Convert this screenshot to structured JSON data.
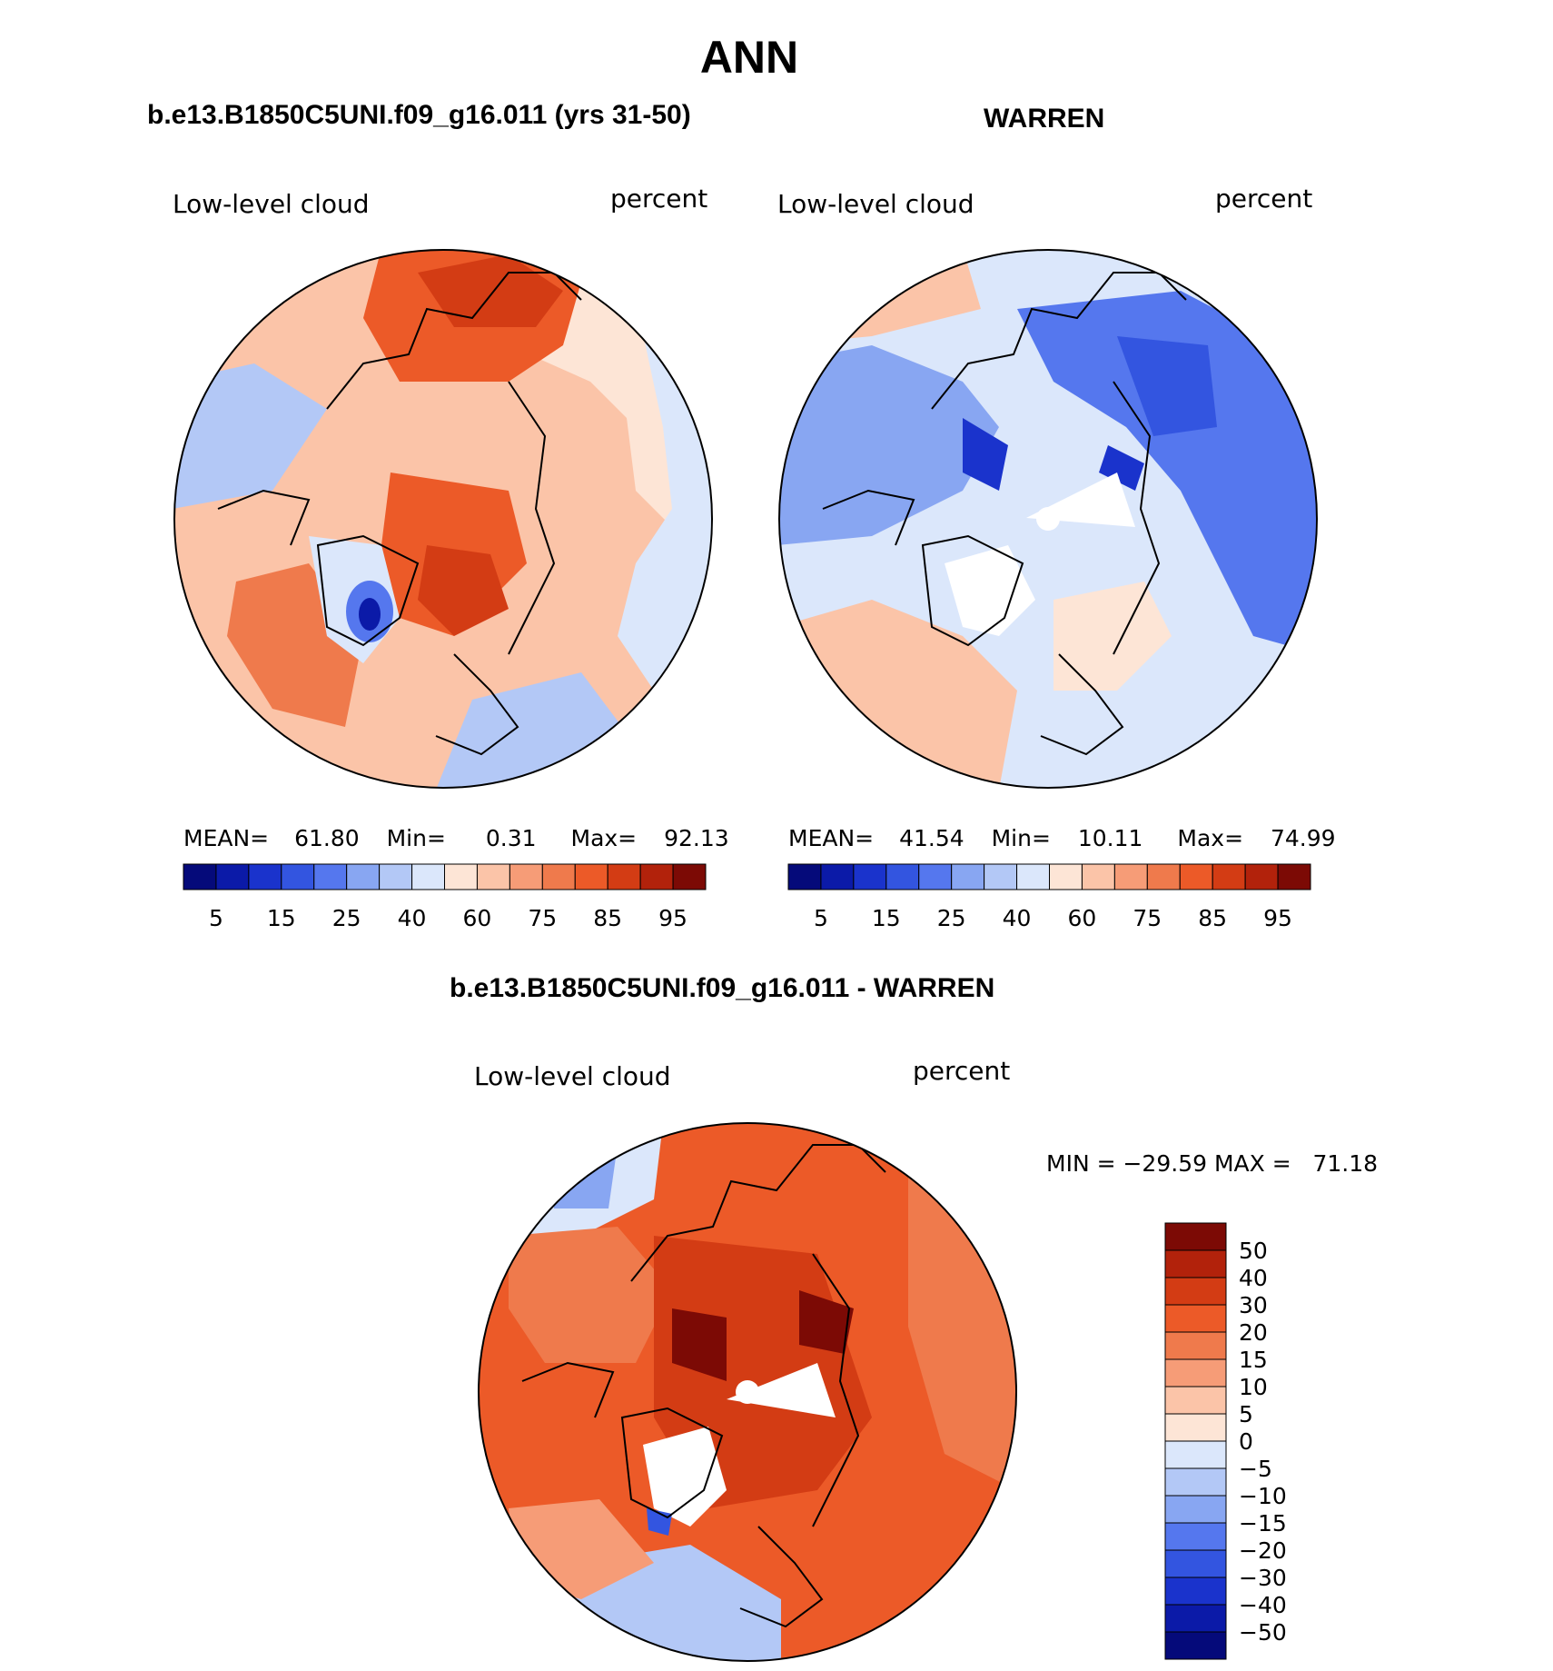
{
  "page": {
    "main_title": "ANN",
    "left_header": "b.e13.B1850C5UNI.f09_g16.011 (yrs 31-50)",
    "right_header": "WARREN",
    "diff_header": "b.e13.B1850C5UNI.f09_g16.011 - WARREN"
  },
  "chart_data": [
    {
      "type": "heatmap",
      "projection": "north-polar-stereographic",
      "title": "b.e13.B1850C5UNI.f09_g16.011 (yrs 31-50)",
      "variable": "Low-level cloud",
      "units": "percent",
      "stats_labels": {
        "mean": "MEAN=",
        "min": "Min=",
        "max": "Max="
      },
      "stats": {
        "mean": "61.80",
        "min": "0.31",
        "max": "92.13"
      },
      "colorbar_ticks": [
        "5",
        "15",
        "25",
        "40",
        "60",
        "75",
        "85",
        "95"
      ],
      "colorbar_colors": [
        "#050a7a",
        "#0b1aa8",
        "#1a33cc",
        "#3355e0",
        "#5577ee",
        "#88a6f2",
        "#b3c8f6",
        "#dbe7fb",
        "#fde5d6",
        "#fbc4a8",
        "#f69c77",
        "#ef7a4c",
        "#ec5a28",
        "#d33c14",
        "#b2220b",
        "#7c0a05"
      ]
    },
    {
      "type": "heatmap",
      "projection": "north-polar-stereographic",
      "title": "WARREN",
      "variable": "Low-level cloud",
      "units": "percent",
      "stats_labels": {
        "mean": "MEAN=",
        "min": "Min=",
        "max": "Max="
      },
      "stats": {
        "mean": "41.54",
        "min": "10.11",
        "max": "74.99"
      },
      "colorbar_ticks": [
        "5",
        "15",
        "25",
        "40",
        "60",
        "75",
        "85",
        "95"
      ],
      "colorbar_colors": [
        "#050a7a",
        "#0b1aa8",
        "#1a33cc",
        "#3355e0",
        "#5577ee",
        "#88a6f2",
        "#b3c8f6",
        "#dbe7fb",
        "#fde5d6",
        "#fbc4a8",
        "#f69c77",
        "#ef7a4c",
        "#ec5a28",
        "#d33c14",
        "#b2220b",
        "#7c0a05"
      ]
    },
    {
      "type": "heatmap",
      "projection": "north-polar-stereographic",
      "title": "b.e13.B1850C5UNI.f09_g16.011 - WARREN",
      "variable": "Low-level cloud",
      "units": "percent",
      "minmax_text": "MIN = −29.59 MAX =   71.18",
      "colorbar_ticks": [
        "50",
        "40",
        "30",
        "20",
        "15",
        "10",
        "5",
        "0",
        "−5",
        "−10",
        "−15",
        "−20",
        "−30",
        "−40",
        "−50"
      ],
      "colorbar_colors": [
        "#7c0a05",
        "#b2220b",
        "#d33c14",
        "#ec5a28",
        "#ef7a4c",
        "#f69c77",
        "#fbc4a8",
        "#fde5d6",
        "#dbe7fb",
        "#b3c8f6",
        "#88a6f2",
        "#5577ee",
        "#3355e0",
        "#1a33cc",
        "#0b1aa8",
        "#050a7a"
      ]
    }
  ]
}
